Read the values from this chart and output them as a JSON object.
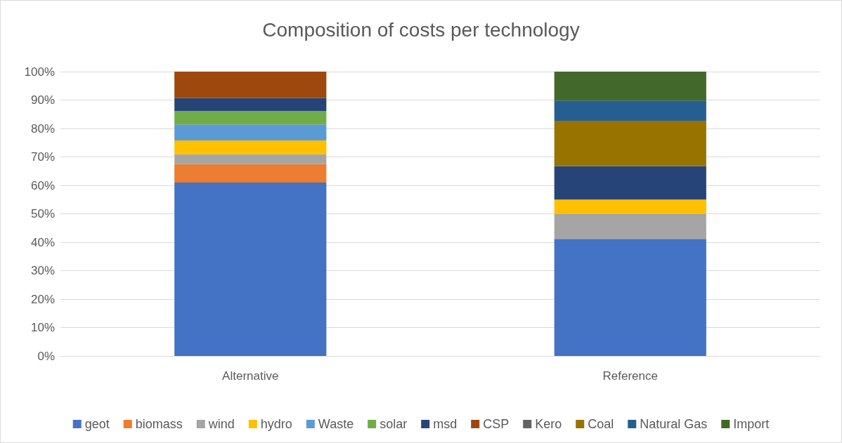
{
  "chart_data": {
    "type": "bar",
    "title": "Composition of costs per technology",
    "categories": [
      "Alternative",
      "Reference"
    ],
    "stacked": true,
    "series": [
      {
        "name": "geot",
        "color": "#4472c4",
        "values": [
          61,
          41.2
        ]
      },
      {
        "name": "biomass",
        "color": "#ed7d31",
        "values": [
          6.5,
          0
        ]
      },
      {
        "name": "wind",
        "color": "#a5a5a5",
        "values": [
          3.4,
          8.8
        ]
      },
      {
        "name": "hydro",
        "color": "#ffc000",
        "values": [
          4.9,
          5
        ]
      },
      {
        "name": "Waste",
        "color": "#5b9bd5",
        "values": [
          5.6,
          0
        ]
      },
      {
        "name": "solar",
        "color": "#70ad47",
        "values": [
          4.7,
          0
        ]
      },
      {
        "name": "msd",
        "color": "#264478",
        "values": [
          4.6,
          11.8
        ]
      },
      {
        "name": "CSP",
        "color": "#9e480e",
        "values": [
          9.3,
          0
        ]
      },
      {
        "name": "Kero",
        "color": "#636363",
        "values": [
          0,
          null
        ]
      },
      {
        "name": "Coal",
        "color": "#997300",
        "values": [
          0,
          15.9
        ]
      },
      {
        "name": "Natural Gas",
        "color": "#255e91",
        "values": [
          0,
          7.1
        ]
      },
      {
        "name": "Import",
        "color": "#43682b",
        "values": [
          0,
          10.2
        ]
      }
    ],
    "ylim": [
      0,
      100
    ],
    "yticks": [
      {
        "value": 0,
        "label": "0%"
      },
      {
        "value": 10,
        "label": "10%"
      },
      {
        "value": 20,
        "label": "20%"
      },
      {
        "value": 30,
        "label": "30%"
      },
      {
        "value": 40,
        "label": "40%"
      },
      {
        "value": 50,
        "label": "50%"
      },
      {
        "value": 60,
        "label": "60%"
      },
      {
        "value": 70,
        "label": "70%"
      },
      {
        "value": 80,
        "label": "80%"
      },
      {
        "value": 90,
        "label": "90%"
      },
      {
        "value": 100,
        "label": "100%"
      }
    ],
    "grid": "y",
    "legend": "bottom"
  }
}
